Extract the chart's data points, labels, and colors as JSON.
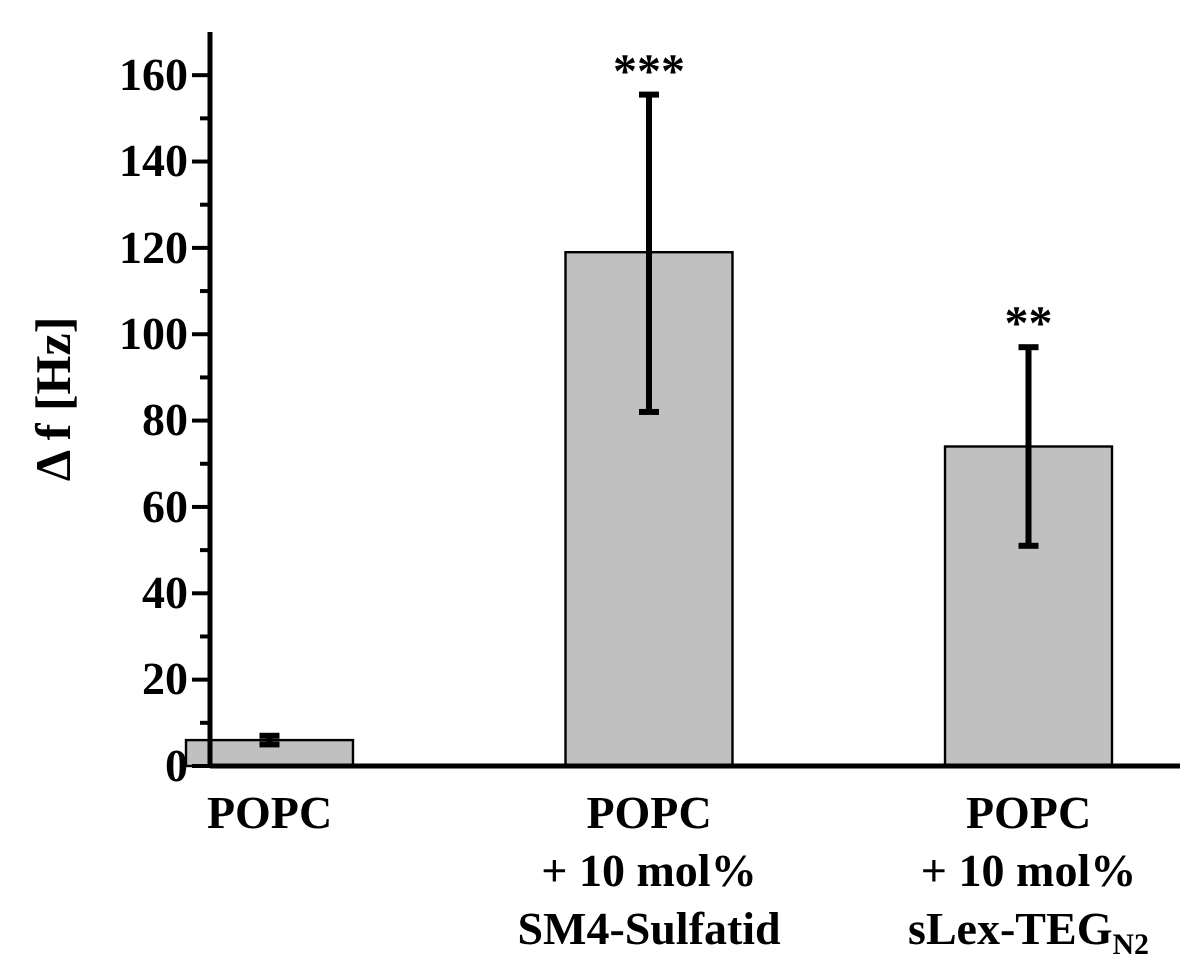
{
  "chart_data": {
    "type": "bar",
    "ylabel": "Δ f [Hz]",
    "categories": [
      "POPC",
      "POPC\n+ 10 mol%\nSM4-Sulfatid",
      "POPC\n+ 10 mol%\nsLex-TEG$_{N2}$"
    ],
    "values": [
      6,
      119,
      74
    ],
    "color": "#c0c0c0",
    "errors": [
      1,
      [
        82,
        155.5
      ],
      [
        51,
        97
      ]
    ],
    "ylim": [
      0,
      170
    ],
    "yticks": [
      0,
      {
        "value": 10,
        "label": null
      },
      20,
      {
        "value": 30,
        "label": null
      },
      40,
      {
        "value": 50,
        "label": null
      },
      60,
      {
        "value": 70,
        "label": null
      },
      80,
      {
        "value": 90,
        "label": null
      },
      100,
      {
        "value": 110,
        "label": null
      },
      120,
      {
        "value": 130,
        "label": null
      },
      140,
      {
        "value": 150,
        "label": null
      },
      160
    ],
    "annotations": [
      {
        "text": "***",
        "x": "POPC\n+ 10 mol%\nSM4-Sulfatid",
        "y": 155.5
      },
      {
        "text": "**",
        "x": "POPC\n+ 10 mol%\nsLex-TEG$_{N2}$",
        "y": 97
      }
    ],
    "grid": false
  }
}
